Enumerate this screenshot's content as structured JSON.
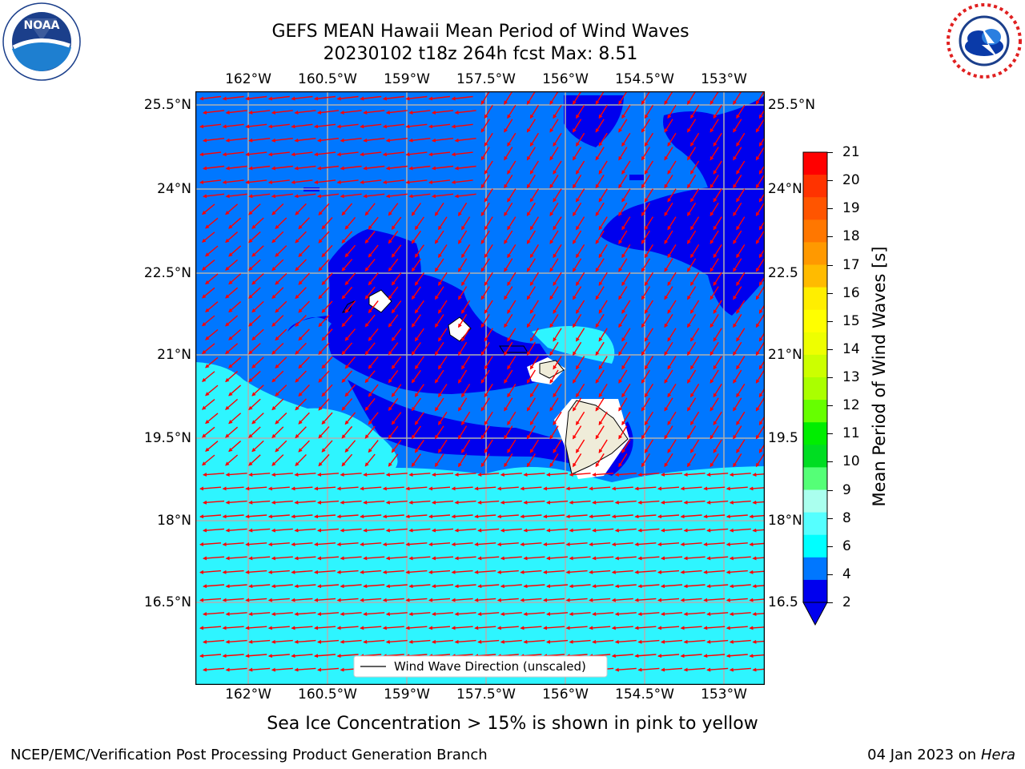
{
  "title": {
    "line1": "GEFS MEAN Hawaii Mean Period of Wind Waves",
    "line2": "20230102 t18z 264h fcst   Max: 8.51"
  },
  "logos": {
    "left": {
      "name": "NOAA",
      "ring_text": "NATIONAL OCEANIC AND ATMOSPHERIC ADMINISTRATION · U.S. DEPARTMENT OF COMMERCE"
    },
    "right": {
      "name": "NATIONAL WEATHER SERVICE"
    }
  },
  "map": {
    "lon_labels": [
      "162°W",
      "160.5°W",
      "159°W",
      "157.5°W",
      "156°W",
      "154.5°W",
      "153°W"
    ],
    "lat_labels": [
      "25.5°N",
      "24°N",
      "22.5°N",
      "21°N",
      "19.5°N",
      "18°N",
      "16.5°N"
    ],
    "right_lat_labels": [
      "25.5°N",
      "24°N",
      "22.5",
      "21°N",
      "19.5",
      "18°N",
      "16.5"
    ],
    "legend_label": "Wind Wave Direction (unscaled)",
    "colors": {
      "period_2_4": "#0077ff",
      "period_lt_2": "#0000ee",
      "period_4_6": "#00ffff",
      "period_6_8": "#44ffff",
      "land": "#efecd9",
      "arrow": "#ff0000",
      "grid": "#b0b0b0"
    }
  },
  "colorbar": {
    "title": "Mean Period of Wind Waves [s]",
    "ticks": [
      "21",
      "20",
      "19",
      "18",
      "17",
      "16",
      "15",
      "14",
      "13",
      "12",
      "11",
      "10",
      "9",
      "8",
      "6",
      "4",
      "2"
    ],
    "colors": [
      "#ff0000",
      "#ff3300",
      "#ff5500",
      "#ff7700",
      "#ff9900",
      "#ffbb00",
      "#ffee00",
      "#ffff00",
      "#eeff00",
      "#ccff00",
      "#aaff00",
      "#66ff00",
      "#00ee00",
      "#00dd22",
      "#55ff77",
      "#aaffee",
      "#55ffff",
      "#00ffff",
      "#0077ff",
      "#0000ee"
    ]
  },
  "subtitle": "Sea Ice Concentration > 15% is shown in pink to yellow",
  "footer": {
    "left": "NCEP/EMC/Verification Post Processing Product Generation Branch",
    "right_date": "04 Jan 2023 on ",
    "right_host": "Hera"
  }
}
